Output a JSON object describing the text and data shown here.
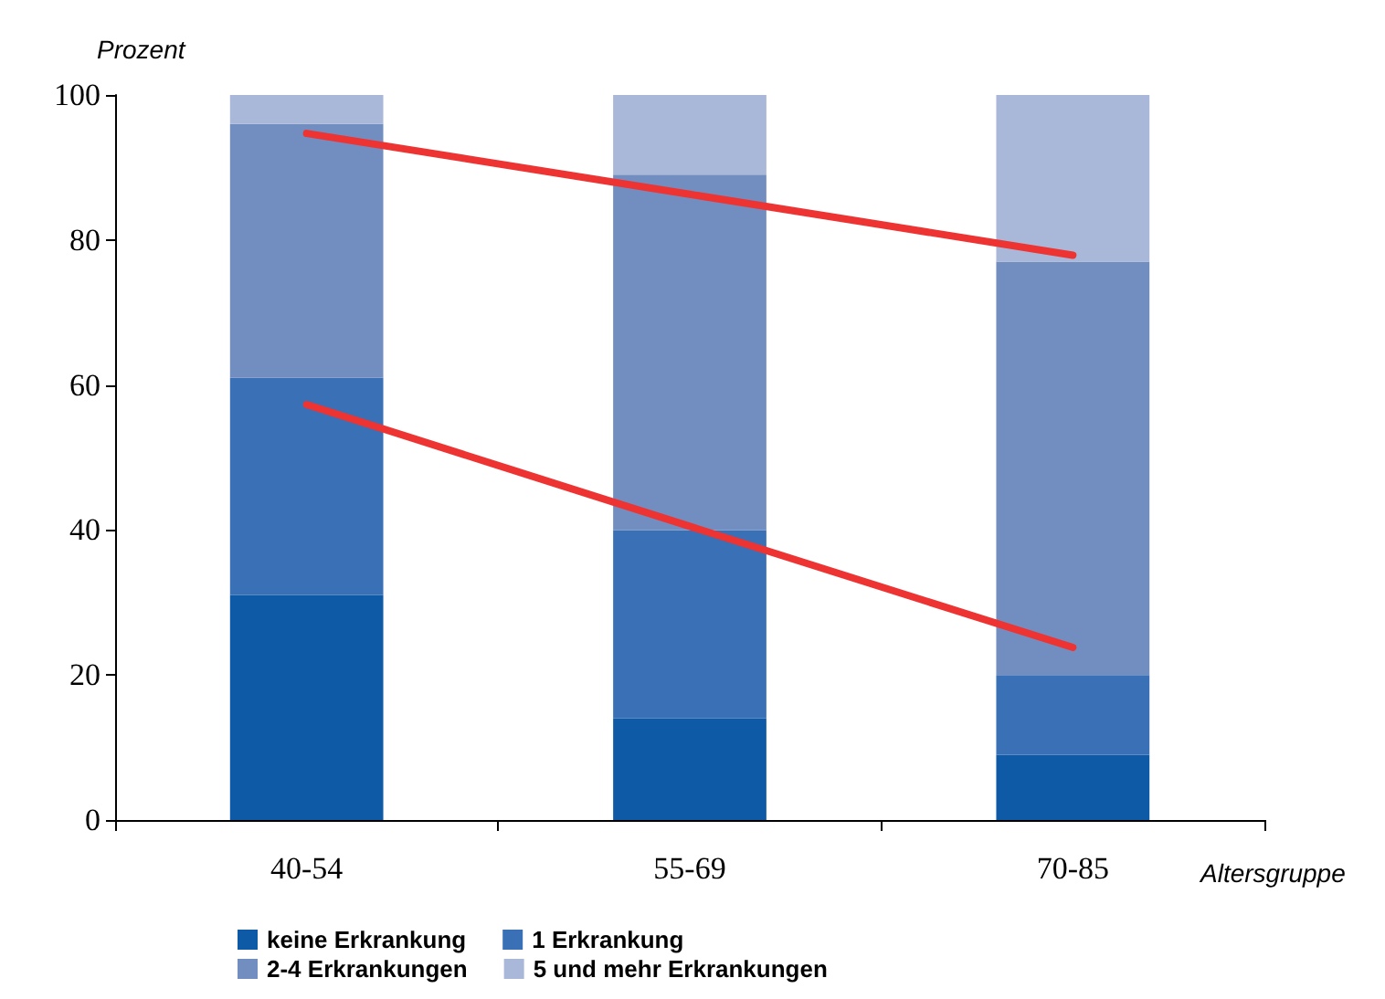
{
  "chart_data": {
    "type": "bar",
    "stacked": true,
    "ylabel": "Prozent",
    "xlabel": "Altersgruppe",
    "categories": [
      "40-54",
      "55-69",
      "70-85"
    ],
    "ylim": [
      0,
      100
    ],
    "yticks": [
      0,
      20,
      40,
      60,
      80,
      100
    ],
    "grid": false,
    "legend": "bottom",
    "series": [
      {
        "name": "keine Erkrankung",
        "color": "#0e5aa6",
        "values": [
          31,
          14,
          9
        ]
      },
      {
        "name": "1 Erkrankung",
        "color": "#3a70b6",
        "values": [
          30,
          26,
          11
        ]
      },
      {
        "name": "2-4 Erkrankungen",
        "color": "#728ec0",
        "values": [
          35,
          49,
          57
        ]
      },
      {
        "name": "5 und mehr Erkrankungen",
        "color": "#a9b8d8",
        "values": [
          4,
          11,
          23
        ]
      },
      {
        "type": "line",
        "color": "#ee3333",
        "marker": "none",
        "values": [
          94.7,
          86.3,
          77.9
        ]
      },
      {
        "type": "line",
        "color": "#ee3333",
        "marker": "none",
        "values": [
          57.3,
          40.5,
          23.8
        ]
      }
    ]
  }
}
